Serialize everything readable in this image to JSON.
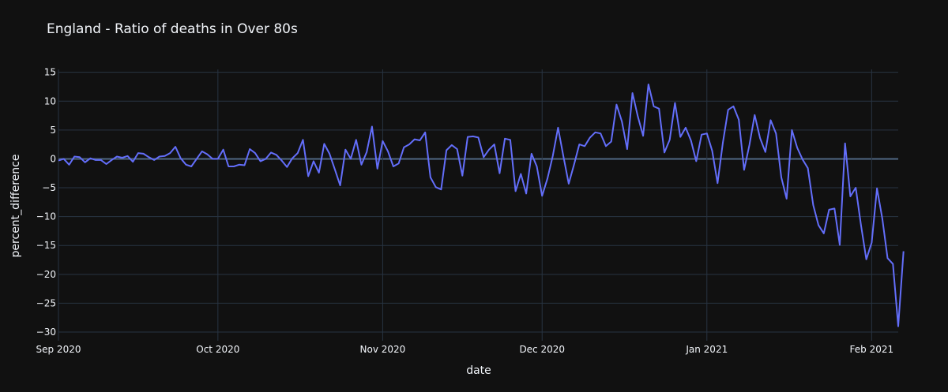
{
  "chart_data": {
    "type": "line",
    "title": "England - Ratio of deaths in Over 80s",
    "xlabel": "date",
    "ylabel": "percent_difference",
    "x_range": [
      "2020-09-01",
      "2021-02-06"
    ],
    "ylim": [
      -31.5,
      15.5
    ],
    "y_ticks": [
      15,
      10,
      5,
      0,
      -5,
      -10,
      -15,
      -20,
      -25,
      -30
    ],
    "y_tick_labels": [
      "15",
      "10",
      "5",
      "0",
      "−5",
      "−10",
      "−15",
      "−20",
      "−25",
      "−30"
    ],
    "x_ticks": [
      {
        "date": "2020-09-01",
        "label": "Sep 2020"
      },
      {
        "date": "2020-10-01",
        "label": "Oct 2020"
      },
      {
        "date": "2020-11-01",
        "label": "Nov 2020"
      },
      {
        "date": "2020-12-01",
        "label": "Dec 2020"
      },
      {
        "date": "2021-01-01",
        "label": "Jan 2021"
      },
      {
        "date": "2021-02-01",
        "label": "Feb 2021"
      }
    ],
    "grid": true,
    "colors": {
      "background": "#111111",
      "series": "#636efa",
      "grid": "#283442",
      "zeroline": "#506784",
      "text": "#f2f5fa"
    },
    "series": [
      {
        "start_date": "2020-09-01",
        "values": [
          -0.3,
          0,
          -1,
          0.4,
          0.3,
          -0.6,
          0.1,
          -0.2,
          -0.2,
          -0.9,
          -0.2,
          0.4,
          0.2,
          0.5,
          -0.5,
          1,
          0.9,
          0.3,
          -0.2,
          0.4,
          0.5,
          1,
          2.1,
          0.1,
          -1,
          -1.3,
          0,
          1.3,
          0.8,
          0,
          0,
          1.6,
          -1.3,
          -1.3,
          -1,
          -1.1,
          1.7,
          1,
          -0.4,
          0,
          1.1,
          0.7,
          -0.3,
          -1.4,
          0.1,
          1,
          3.3,
          -3,
          -0.4,
          -2.4,
          2.6,
          0.9,
          -1.8,
          -4.6,
          1.6,
          0,
          3.3,
          -1,
          1.2,
          5.6,
          -1.7,
          3.1,
          1.3,
          -1.3,
          -0.8,
          2,
          2.5,
          3.4,
          3.2,
          4.6,
          -3.2,
          -4.9,
          -5.3,
          1.5,
          2.4,
          1.7,
          -2.9,
          3.8,
          3.9,
          3.7,
          0.3,
          1.6,
          2.5,
          -2.5,
          3.5,
          3.3,
          -5.6,
          -2.6,
          -6,
          0.9,
          -1.3,
          -6.4,
          -3.4,
          0.5,
          5.4,
          0.5,
          -4.3,
          -1,
          2.5,
          2.2,
          3.7,
          4.6,
          4.4,
          2.2,
          3,
          9.4,
          6.5,
          1.7,
          11.4,
          7.4,
          4,
          12.9,
          9.1,
          8.7,
          1.1,
          3.3,
          9.7,
          3.8,
          5.4,
          3.2,
          -0.4,
          4.2,
          4.4,
          1.4,
          -4.2,
          2.8,
          8.5,
          9.1,
          6.8,
          -1.9,
          2.4,
          7.6,
          3.6,
          1.2,
          6.7,
          4.4,
          -3.2,
          -6.9,
          5,
          1.9,
          -0.1,
          -1.6,
          -8,
          -11.5,
          -12.9,
          -8.8,
          -8.6,
          -14.9,
          2.7,
          -6.5,
          -5,
          -11.5,
          -17.4,
          -14.5,
          -5.1,
          -10.3,
          -17.2,
          -18.2,
          -29,
          -16
        ]
      }
    ]
  }
}
